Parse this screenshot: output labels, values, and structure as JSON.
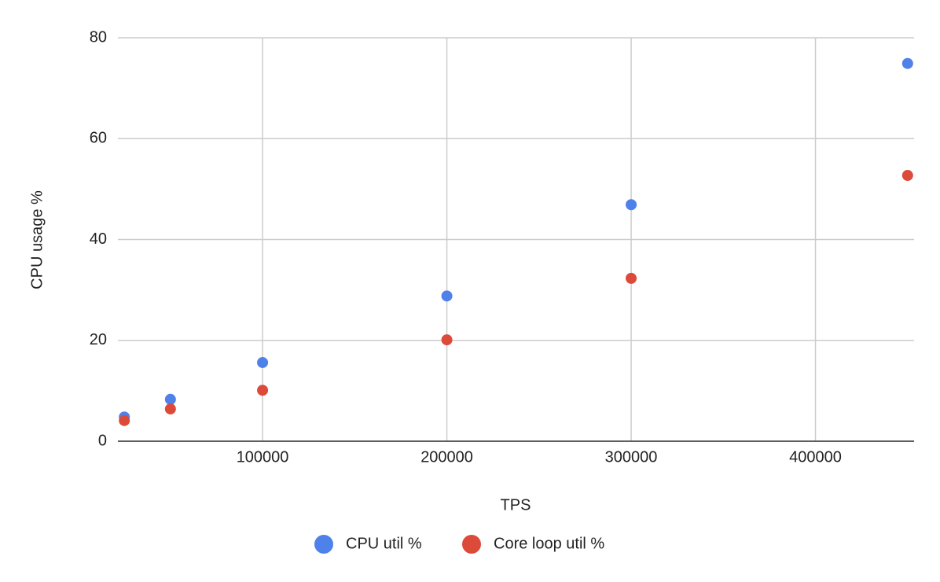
{
  "chart_data": {
    "type": "scatter",
    "x_label": "TPS",
    "y_label": "CPU usage %",
    "xlim": [
      21500,
      453500
    ],
    "xticks": [
      100000,
      200000,
      300000,
      400000
    ],
    "ylim": [
      0,
      80
    ],
    "yticks": [
      0,
      20,
      40,
      60,
      80
    ],
    "grid": true,
    "legend": "bottom",
    "series": [
      {
        "name": "CPU util %",
        "color": "#4f81eb",
        "x": [
          25000,
          50000,
          100000,
          200000,
          300000,
          450000
        ],
        "values": [
          4.8,
          8.3,
          15.6,
          28.8,
          46.9,
          74.9
        ]
      },
      {
        "name": "Core loop util %",
        "color": "#dc4a3a",
        "x": [
          25000,
          50000,
          100000,
          200000,
          300000,
          450000
        ],
        "values": [
          4.1,
          6.4,
          10.1,
          20.1,
          32.3,
          52.7
        ]
      }
    ]
  }
}
